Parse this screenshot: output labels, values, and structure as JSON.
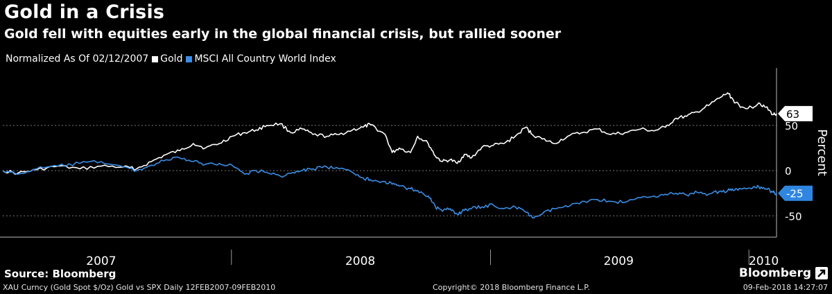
{
  "header": {
    "title": "Gold in a Crisis",
    "subtitle": "Gold fell with equities early in the global financial crisis, but rallied sooner"
  },
  "legend": {
    "prefix": "Normalized As Of 02/12/2007",
    "items": [
      {
        "label": "Gold",
        "color": "#ffffff"
      },
      {
        "label": "MSCI All Country World Index",
        "color": "#3a8ee6"
      }
    ]
  },
  "footer": {
    "source": "Source: Bloomberg",
    "ticker": "XAU Curncy (Gold Spot  $/Oz) Gold vs SPX  Daily 12FEB2007-09FEB2010",
    "copyright": "Copyright© 2018 Bloomberg Finance L.P.",
    "brand": "Bloomberg",
    "brand_icon": "arrow-icon",
    "timestamp": "09-Feb-2018 14:27:07"
  },
  "chart_data": {
    "type": "line",
    "ylabel": "Percent",
    "ylim": [
      -72,
      112
    ],
    "yticks": [
      -50,
      0,
      50
    ],
    "xlim": [
      "2007-02-12",
      "2010-02-09"
    ],
    "xlabels": [
      {
        "label": "2007",
        "date": "2007-07-01"
      },
      {
        "label": "2008",
        "date": "2008-07-01"
      },
      {
        "label": "2009",
        "date": "2009-07-01"
      },
      {
        "label": "2010",
        "date": "2010-01-22"
      }
    ],
    "year_dividers": [
      "2008-01-01",
      "2009-01-01",
      "2010-01-01"
    ],
    "grid": "dashed-horizontal",
    "series": [
      {
        "name": "Gold",
        "color": "#ffffff",
        "last_value": 63,
        "points": [
          [
            "2007-02-12",
            0
          ],
          [
            "2007-03-05",
            -3
          ],
          [
            "2007-04-01",
            1
          ],
          [
            "2007-05-01",
            5
          ],
          [
            "2007-06-01",
            2
          ],
          [
            "2007-07-01",
            5
          ],
          [
            "2007-08-01",
            4
          ],
          [
            "2007-08-20",
            2
          ],
          [
            "2007-09-10",
            10
          ],
          [
            "2007-10-01",
            18
          ],
          [
            "2007-10-20",
            22
          ],
          [
            "2007-11-08",
            30
          ],
          [
            "2007-11-25",
            25
          ],
          [
            "2007-12-15",
            30
          ],
          [
            "2008-01-02",
            38
          ],
          [
            "2008-01-20",
            42
          ],
          [
            "2008-02-05",
            45
          ],
          [
            "2008-02-20",
            50
          ],
          [
            "2008-03-10",
            52
          ],
          [
            "2008-03-25",
            42
          ],
          [
            "2008-04-10",
            46
          ],
          [
            "2008-04-25",
            40
          ],
          [
            "2008-05-15",
            38
          ],
          [
            "2008-06-01",
            40
          ],
          [
            "2008-06-20",
            45
          ],
          [
            "2008-07-05",
            48
          ],
          [
            "2008-07-15",
            51
          ],
          [
            "2008-08-05",
            40
          ],
          [
            "2008-08-15",
            20
          ],
          [
            "2008-08-25",
            25
          ],
          [
            "2008-09-10",
            20
          ],
          [
            "2008-09-20",
            38
          ],
          [
            "2008-10-05",
            30
          ],
          [
            "2008-10-15",
            16
          ],
          [
            "2008-10-25",
            10
          ],
          [
            "2008-11-05",
            12
          ],
          [
            "2008-11-15",
            8
          ],
          [
            "2008-11-25",
            18
          ],
          [
            "2008-12-05",
            14
          ],
          [
            "2008-12-20",
            26
          ],
          [
            "2009-01-05",
            28
          ],
          [
            "2009-01-20",
            30
          ],
          [
            "2009-02-05",
            38
          ],
          [
            "2009-02-20",
            48
          ],
          [
            "2009-03-01",
            40
          ],
          [
            "2009-03-15",
            35
          ],
          [
            "2009-04-01",
            30
          ],
          [
            "2009-04-20",
            38
          ],
          [
            "2009-05-10",
            42
          ],
          [
            "2009-06-01",
            46
          ],
          [
            "2009-06-20",
            40
          ],
          [
            "2009-07-10",
            42
          ],
          [
            "2009-08-01",
            46
          ],
          [
            "2009-08-20",
            44
          ],
          [
            "2009-09-05",
            48
          ],
          [
            "2009-09-20",
            58
          ],
          [
            "2009-10-05",
            60
          ],
          [
            "2009-10-20",
            65
          ],
          [
            "2009-11-05",
            72
          ],
          [
            "2009-11-20",
            80
          ],
          [
            "2009-12-02",
            86
          ],
          [
            "2009-12-10",
            78
          ],
          [
            "2009-12-20",
            70
          ],
          [
            "2010-01-05",
            70
          ],
          [
            "2010-01-15",
            75
          ],
          [
            "2010-01-25",
            70
          ],
          [
            "2010-02-04",
            62
          ],
          [
            "2010-02-09",
            63
          ]
        ]
      },
      {
        "name": "MSCI All Country World Index",
        "color": "#3a8ee6",
        "last_value": -25,
        "points": [
          [
            "2007-02-12",
            0
          ],
          [
            "2007-03-05",
            -4
          ],
          [
            "2007-04-01",
            2
          ],
          [
            "2007-05-01",
            5
          ],
          [
            "2007-06-01",
            8
          ],
          [
            "2007-07-01",
            10
          ],
          [
            "2007-08-01",
            4
          ],
          [
            "2007-08-20",
            0
          ],
          [
            "2007-09-10",
            6
          ],
          [
            "2007-10-01",
            12
          ],
          [
            "2007-10-20",
            14
          ],
          [
            "2007-11-08",
            10
          ],
          [
            "2007-11-25",
            7
          ],
          [
            "2007-12-15",
            8
          ],
          [
            "2008-01-02",
            6
          ],
          [
            "2008-01-20",
            -4
          ],
          [
            "2008-02-05",
            0
          ],
          [
            "2008-02-20",
            -2
          ],
          [
            "2008-03-10",
            -6
          ],
          [
            "2008-03-25",
            -3
          ],
          [
            "2008-04-10",
            0
          ],
          [
            "2008-04-25",
            2
          ],
          [
            "2008-05-15",
            4
          ],
          [
            "2008-06-01",
            2
          ],
          [
            "2008-06-20",
            -2
          ],
          [
            "2008-07-05",
            -8
          ],
          [
            "2008-07-15",
            -10
          ],
          [
            "2008-08-05",
            -12
          ],
          [
            "2008-08-15",
            -15
          ],
          [
            "2008-08-25",
            -17
          ],
          [
            "2008-09-10",
            -20
          ],
          [
            "2008-09-20",
            -22
          ],
          [
            "2008-10-05",
            -28
          ],
          [
            "2008-10-15",
            -40
          ],
          [
            "2008-10-25",
            -45
          ],
          [
            "2008-11-05",
            -42
          ],
          [
            "2008-11-15",
            -48
          ],
          [
            "2008-11-25",
            -44
          ],
          [
            "2008-12-05",
            -42
          ],
          [
            "2008-12-20",
            -40
          ],
          [
            "2009-01-05",
            -38
          ],
          [
            "2009-01-20",
            -42
          ],
          [
            "2009-02-05",
            -40
          ],
          [
            "2009-02-20",
            -46
          ],
          [
            "2009-03-01",
            -52
          ],
          [
            "2009-03-15",
            -48
          ],
          [
            "2009-04-01",
            -42
          ],
          [
            "2009-04-20",
            -40
          ],
          [
            "2009-05-10",
            -34
          ],
          [
            "2009-06-01",
            -32
          ],
          [
            "2009-06-20",
            -34
          ],
          [
            "2009-07-10",
            -35
          ],
          [
            "2009-08-01",
            -30
          ],
          [
            "2009-08-20",
            -28
          ],
          [
            "2009-09-05",
            -26
          ],
          [
            "2009-09-20",
            -25
          ],
          [
            "2009-10-05",
            -27
          ],
          [
            "2009-10-20",
            -24
          ],
          [
            "2009-11-05",
            -26
          ],
          [
            "2009-11-20",
            -23
          ],
          [
            "2009-12-02",
            -22
          ],
          [
            "2009-12-10",
            -22
          ],
          [
            "2009-12-20",
            -20
          ],
          [
            "2010-01-05",
            -20
          ],
          [
            "2010-01-15",
            -18
          ],
          [
            "2010-01-25",
            -20
          ],
          [
            "2010-02-04",
            -24
          ],
          [
            "2010-02-09",
            -25
          ]
        ]
      }
    ]
  }
}
